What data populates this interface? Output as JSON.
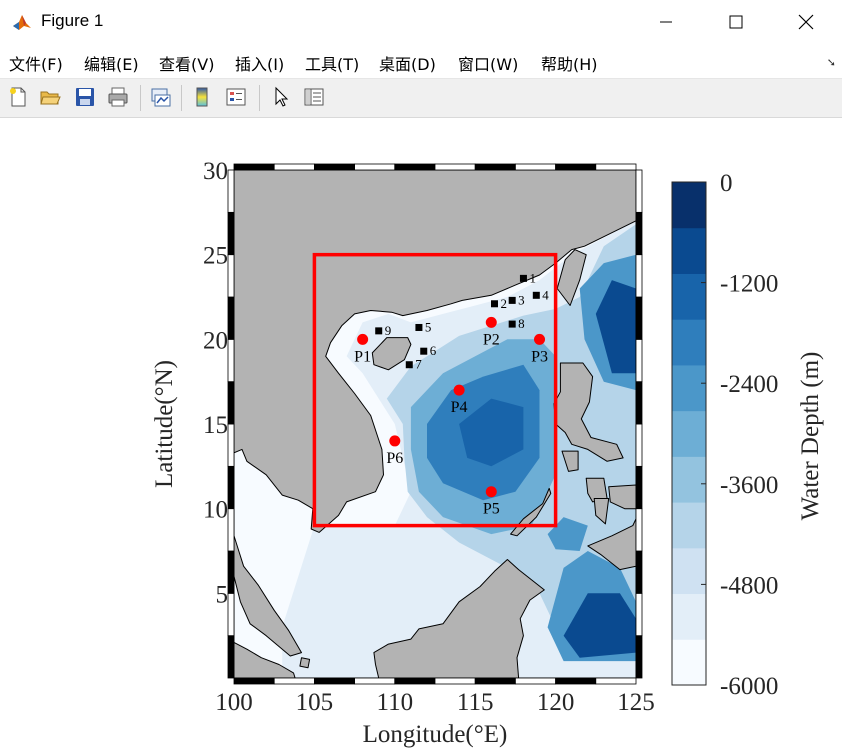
{
  "window": {
    "title": "Figure 1"
  },
  "menu": [
    "文件(F)",
    "编辑(E)",
    "查看(V)",
    "插入(I)",
    "工具(T)",
    "桌面(D)",
    "窗口(W)",
    "帮助(H)"
  ],
  "toolbar": {
    "buttons": [
      {
        "name": "new-figure-icon"
      },
      {
        "name": "open-file-icon"
      },
      {
        "name": "save-icon"
      },
      {
        "name": "print-icon"
      },
      {
        "name": "link-plot-icon"
      },
      {
        "name": "colorbar-icon"
      },
      {
        "name": "legend-icon"
      },
      {
        "name": "pointer-icon"
      },
      {
        "name": "property-inspector-icon"
      }
    ]
  },
  "chart_data": {
    "type": "heatmap",
    "title": "",
    "xlabel": "Longitude(°E)",
    "ylabel": "Latitude(°N)",
    "xlim": [
      100,
      125
    ],
    "ylim": [
      0,
      30
    ],
    "xticks": [
      "100",
      "105",
      "110",
      "115",
      "120",
      "125"
    ],
    "yticks": [
      "5",
      "10",
      "15",
      "20",
      "25",
      "30"
    ],
    "land_color": "#b3b3b3",
    "region_box": {
      "lon": [
        105,
        120
      ],
      "lat": [
        9,
        25
      ],
      "color": "#ff0000"
    },
    "stations": [
      {
        "label": "1",
        "lon": 118.0,
        "lat": 23.6
      },
      {
        "label": "2",
        "lon": 116.2,
        "lat": 22.1
      },
      {
        "label": "3",
        "lon": 117.3,
        "lat": 22.3
      },
      {
        "label": "4",
        "lon": 118.8,
        "lat": 22.6
      },
      {
        "label": "5",
        "lon": 111.5,
        "lat": 20.7
      },
      {
        "label": "6",
        "lon": 111.8,
        "lat": 19.3
      },
      {
        "label": "7",
        "lon": 110.9,
        "lat": 18.5
      },
      {
        "label": "8",
        "lon": 117.3,
        "lat": 20.9
      },
      {
        "label": "9",
        "lon": 109.0,
        "lat": 20.5
      }
    ],
    "points": [
      {
        "label": "P1",
        "lon": 108.0,
        "lat": 20.0
      },
      {
        "label": "P2",
        "lon": 116.0,
        "lat": 21.0
      },
      {
        "label": "P3",
        "lon": 119.0,
        "lat": 20.0
      },
      {
        "label": "P4",
        "lon": 114.0,
        "lat": 17.0
      },
      {
        "label": "P5",
        "lon": 116.0,
        "lat": 11.0
      },
      {
        "label": "P6",
        "lon": 110.0,
        "lat": 14.0
      }
    ],
    "colorbar": {
      "label": "Water Depth (m)",
      "range": [
        -6000,
        0
      ],
      "ticks": [
        "-6000",
        "-4800",
        "-3600",
        "-2400",
        "-1200",
        "0"
      ],
      "levels": [
        "#f7fbff",
        "#e3eef8",
        "#cfe1f2",
        "#b5d4e9",
        "#93c3df",
        "#6daed5",
        "#4b97c9",
        "#2f7ebc",
        "#1864aa",
        "#0a4a90",
        "#08306b"
      ]
    },
    "depth_regions": [
      {
        "level": 1,
        "polygon": [
          [
            110,
            9
          ],
          [
            111,
            11
          ],
          [
            110.5,
            13
          ],
          [
            110,
            15
          ],
          [
            109,
            16.5
          ],
          [
            108,
            18
          ],
          [
            107,
            19
          ],
          [
            108,
            21
          ],
          [
            109.6,
            21.5
          ],
          [
            111,
            21
          ],
          [
            113,
            21.5
          ],
          [
            115,
            22
          ],
          [
            117,
            22.5
          ],
          [
            119,
            23.5
          ],
          [
            121,
            25
          ],
          [
            125,
            27
          ],
          [
            125,
            0
          ],
          [
            103,
            0
          ],
          [
            103,
            3
          ],
          [
            104,
            6
          ],
          [
            105,
            9
          ]
        ]
      },
      {
        "level": 3,
        "polygon": [
          [
            109.5,
            16.5
          ],
          [
            111,
            18.4
          ],
          [
            112.5,
            19.3
          ],
          [
            114,
            20.2
          ],
          [
            116,
            20.8
          ],
          [
            118,
            21.4
          ],
          [
            120,
            21.8
          ],
          [
            121.5,
            22.5
          ],
          [
            123,
            25.5
          ],
          [
            125,
            26.8
          ],
          [
            125,
            2
          ],
          [
            121,
            1
          ],
          [
            119,
            5
          ],
          [
            117,
            6.5
          ],
          [
            114,
            8
          ],
          [
            112,
            9.5
          ],
          [
            110.8,
            11
          ],
          [
            110.6,
            13
          ],
          [
            110.5,
            15
          ]
        ]
      },
      {
        "level": 5,
        "polygon": [
          [
            111,
            16
          ],
          [
            113,
            18
          ],
          [
            115,
            19
          ],
          [
            117,
            20
          ],
          [
            119,
            20
          ],
          [
            120,
            19
          ],
          [
            120,
            15
          ],
          [
            120,
            12
          ],
          [
            118.5,
            9
          ],
          [
            116,
            8.5
          ],
          [
            113,
            9.5
          ],
          [
            111.5,
            11
          ],
          [
            111,
            13.5
          ]
        ]
      },
      {
        "level": 7,
        "polygon": [
          [
            112,
            15
          ],
          [
            113.5,
            17
          ],
          [
            115.5,
            17.8
          ],
          [
            118,
            18.5
          ],
          [
            119,
            17
          ],
          [
            119,
            13
          ],
          [
            117.5,
            11
          ],
          [
            115.5,
            10.5
          ],
          [
            113,
            11.5
          ],
          [
            112,
            13
          ]
        ]
      },
      {
        "level": 8,
        "polygon": [
          [
            114,
            15
          ],
          [
            116,
            16.5
          ],
          [
            118,
            16
          ],
          [
            118,
            13.5
          ],
          [
            116,
            12.5
          ],
          [
            114.5,
            13
          ]
        ]
      },
      {
        "level": 6,
        "polygon": [
          [
            121.5,
            23
          ],
          [
            123,
            24.5
          ],
          [
            125,
            25
          ],
          [
            125,
            17
          ],
          [
            123,
            17.5
          ],
          [
            121.8,
            20
          ]
        ]
      },
      {
        "level": 9,
        "polygon": [
          [
            122.5,
            21.5
          ],
          [
            123.5,
            23.5
          ],
          [
            125,
            23
          ],
          [
            125,
            18
          ],
          [
            123.5,
            18
          ]
        ]
      },
      {
        "level": 6,
        "polygon": [
          [
            119.5,
            3
          ],
          [
            120.5,
            6.5
          ],
          [
            122,
            7.5
          ],
          [
            124,
            6.5
          ],
          [
            125,
            4.5
          ],
          [
            125,
            1
          ],
          [
            120.5,
            1
          ]
        ]
      },
      {
        "level": 9,
        "polygon": [
          [
            120.5,
            2.5
          ],
          [
            122,
            5
          ],
          [
            124,
            5
          ],
          [
            125,
            3.5
          ],
          [
            125,
            1.5
          ],
          [
            121.5,
            1.2
          ]
        ]
      },
      {
        "level": 6,
        "polygon": [
          [
            119.5,
            8.5
          ],
          [
            120.5,
            9.5
          ],
          [
            122,
            9
          ],
          [
            121.5,
            7.5
          ],
          [
            120,
            7.6
          ]
        ]
      }
    ],
    "land_regions": [
      {
        "name": "china-mainland",
        "polygon": [
          [
            100,
            30
          ],
          [
            125,
            30
          ],
          [
            125,
            27
          ],
          [
            121.8,
            25.5
          ],
          [
            121,
            25.3
          ],
          [
            120,
            24.5
          ],
          [
            119,
            23.8
          ],
          [
            117.5,
            23.2
          ],
          [
            116,
            22.6
          ],
          [
            114.2,
            22.3
          ],
          [
            113.5,
            22.1
          ],
          [
            112,
            21.7
          ],
          [
            110.5,
            21.4
          ],
          [
            109.8,
            21.6
          ],
          [
            108.5,
            21.7
          ],
          [
            107.5,
            21.5
          ],
          [
            106.7,
            20.8
          ],
          [
            106,
            19.8
          ],
          [
            105.7,
            19
          ],
          [
            106.5,
            18
          ],
          [
            107.5,
            16.8
          ],
          [
            108.5,
            15.5
          ],
          [
            109.2,
            13.5
          ],
          [
            109.3,
            12
          ],
          [
            108.8,
            11
          ],
          [
            107,
            10.4
          ],
          [
            106.5,
            9.6
          ],
          [
            105.3,
            8.6
          ],
          [
            104.8,
            8.8
          ],
          [
            104.9,
            10
          ],
          [
            104,
            10.5
          ],
          [
            103,
            10.8
          ],
          [
            102,
            12
          ],
          [
            100.8,
            12.8
          ],
          [
            100.5,
            13.5
          ],
          [
            100,
            13.3
          ],
          [
            100,
            12.5
          ],
          [
            99.5,
            10.5
          ],
          [
            99.8,
            9
          ],
          [
            100.3,
            7.5
          ],
          [
            100.6,
            6.6
          ],
          [
            101.5,
            5.5
          ],
          [
            102.5,
            4
          ],
          [
            103.4,
            2.8
          ],
          [
            104.2,
            1.5
          ],
          [
            103.5,
            1.3
          ],
          [
            102,
            2.5
          ],
          [
            101,
            3.2
          ],
          [
            100.4,
            4.5
          ],
          [
            100,
            6
          ]
        ]
      },
      {
        "name": "hainan",
        "polygon": [
          [
            108.6,
            19.2
          ],
          [
            109.5,
            20.1
          ],
          [
            110.8,
            20.1
          ],
          [
            111,
            19.7
          ],
          [
            110.6,
            18.8
          ],
          [
            109.6,
            18.2
          ],
          [
            108.7,
            18.5
          ]
        ]
      },
      {
        "name": "taiwan",
        "polygon": [
          [
            120.1,
            23
          ],
          [
            120.6,
            24.7
          ],
          [
            121.2,
            25.3
          ],
          [
            121.9,
            25
          ],
          [
            121.5,
            23.5
          ],
          [
            120.9,
            22
          ]
        ]
      },
      {
        "name": "luzon",
        "polygon": [
          [
            120.3,
            18.6
          ],
          [
            121.7,
            18.6
          ],
          [
            122.3,
            17.8
          ],
          [
            122.1,
            16.3
          ],
          [
            121.6,
            15.3
          ],
          [
            122.2,
            14.2
          ],
          [
            123.8,
            13.8
          ],
          [
            124.2,
            13
          ],
          [
            123.2,
            12.8
          ],
          [
            122,
            13.5
          ],
          [
            121,
            13.8
          ],
          [
            120.6,
            14.5
          ],
          [
            120,
            15
          ],
          [
            119.9,
            16.2
          ],
          [
            120.3,
            16.9
          ]
        ]
      },
      {
        "name": "mindoro",
        "polygon": [
          [
            120.4,
            13.4
          ],
          [
            121.4,
            13.4
          ],
          [
            121.4,
            12.3
          ],
          [
            120.8,
            12.2
          ]
        ]
      },
      {
        "name": "palawan",
        "polygon": [
          [
            119.2,
            10.3
          ],
          [
            119.6,
            11.2
          ],
          [
            119.7,
            10.9
          ],
          [
            118.8,
            9.5
          ],
          [
            117.6,
            8.4
          ],
          [
            117.2,
            8.5
          ],
          [
            118,
            9.4
          ]
        ]
      },
      {
        "name": "visayas",
        "polygon": [
          [
            121.9,
            11.8
          ],
          [
            123,
            11.8
          ],
          [
            123.2,
            10.6
          ],
          [
            122.3,
            10.4
          ],
          [
            122,
            10.9
          ]
        ]
      },
      {
        "name": "visayas-2",
        "polygon": [
          [
            123.3,
            11.3
          ],
          [
            125,
            11.4
          ],
          [
            125,
            10
          ],
          [
            124.3,
            10
          ],
          [
            123.4,
            10.4
          ]
        ]
      },
      {
        "name": "negros",
        "polygon": [
          [
            122.4,
            10.6
          ],
          [
            123.3,
            10.6
          ],
          [
            123.1,
            9.1
          ],
          [
            122.5,
            9.6
          ]
        ]
      },
      {
        "name": "mindanao",
        "polygon": [
          [
            122,
            7.8
          ],
          [
            123.5,
            8.4
          ],
          [
            124.8,
            9
          ],
          [
            125,
            9.4
          ],
          [
            125,
            6.6
          ],
          [
            124,
            6.4
          ],
          [
            122.8,
            7.3
          ]
        ]
      },
      {
        "name": "borneo",
        "polygon": [
          [
            108.7,
            1.5
          ],
          [
            109.6,
            2
          ],
          [
            111,
            2.3
          ],
          [
            111.5,
            2.9
          ],
          [
            113,
            3.2
          ],
          [
            114,
            4.5
          ],
          [
            115.3,
            5.4
          ],
          [
            116.2,
            6.3
          ],
          [
            117,
            7
          ],
          [
            117.7,
            6.4
          ],
          [
            119.3,
            5.2
          ],
          [
            118.4,
            4.6
          ],
          [
            117.8,
            3.5
          ],
          [
            118,
            2.5
          ],
          [
            117.6,
            1.2
          ],
          [
            117.7,
            0
          ],
          [
            109,
            0
          ],
          [
            108.8,
            0.8
          ]
        ]
      },
      {
        "name": "sumatra",
        "polygon": [
          [
            100,
            0
          ],
          [
            100,
            2.1
          ],
          [
            100.8,
            1.7
          ],
          [
            101.7,
            1.2
          ],
          [
            102.8,
            0.8
          ],
          [
            103.7,
            0.3
          ],
          [
            103.8,
            0
          ]
        ]
      },
      {
        "name": "singapore-riau",
        "polygon": [
          [
            104.2,
            1.2
          ],
          [
            104.7,
            1.1
          ],
          [
            104.6,
            0.6
          ],
          [
            104.1,
            0.7
          ]
        ]
      }
    ]
  }
}
